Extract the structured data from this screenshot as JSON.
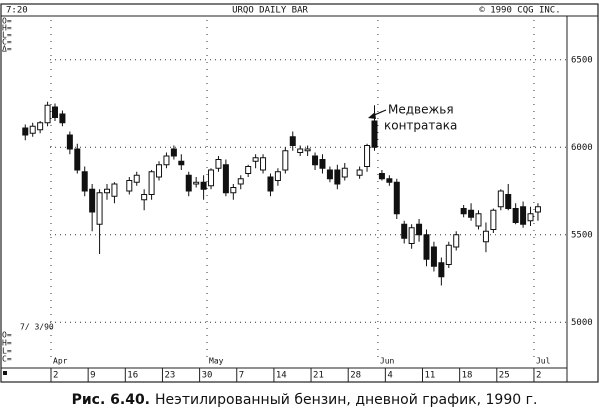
{
  "chart_data": {
    "type": "candlestick",
    "header": {
      "left": "7:20",
      "center": "URQO DAILY BAR",
      "right": "© 1990 CQG INC."
    },
    "readout_top": [
      "O=",
      "H=",
      "L=",
      "C=",
      "Δ="
    ],
    "readout_bottom": [
      "7/ 3/90",
      "O=",
      "H=",
      "L=",
      "C="
    ],
    "annotation": [
      "Медвежья",
      "контратака"
    ],
    "caption": {
      "label": "Рис. 6.40.",
      "text": "Неэтилированный бензин, дневной график, 1990 г."
    },
    "categories": [
      null,
      null,
      null,
      null,
      "2",
      null,
      null,
      null,
      null,
      "9",
      null,
      null,
      null,
      null,
      "16",
      null,
      null,
      null,
      null,
      "23",
      null,
      null,
      null,
      null,
      "30",
      null,
      null,
      null,
      null,
      "7",
      null,
      null,
      null,
      null,
      "14",
      null,
      null,
      null,
      null,
      "21",
      null,
      null,
      null,
      null,
      "28",
      null,
      null,
      null,
      null,
      "4",
      null,
      null,
      null,
      null,
      "11",
      null,
      null,
      null,
      null,
      "18",
      null,
      null,
      null,
      null,
      "25",
      null,
      null,
      null,
      null,
      "2"
    ],
    "months": [
      null,
      null,
      null,
      null,
      "Apr",
      null,
      null,
      null,
      null,
      null,
      null,
      null,
      null,
      null,
      null,
      null,
      null,
      null,
      null,
      null,
      null,
      null,
      null,
      null,
      null,
      "May",
      null,
      null,
      null,
      null,
      null,
      null,
      null,
      null,
      null,
      null,
      null,
      null,
      null,
      null,
      null,
      null,
      null,
      null,
      null,
      null,
      null,
      null,
      "Jun",
      null,
      null,
      null,
      null,
      null,
      null,
      null,
      null,
      null,
      null,
      null,
      null,
      null,
      null,
      null,
      null,
      null,
      null,
      null,
      null,
      "Jul"
    ],
    "open": [
      6110,
      6080,
      6100,
      6140,
      6230,
      6190,
      6070,
      5990,
      5860,
      5760,
      5560,
      5740,
      5720,
      null,
      5750,
      5800,
      5700,
      5730,
      5830,
      5900,
      5990,
      5920,
      5840,
      5790,
      5800,
      5780,
      5880,
      5900,
      5740,
      5790,
      5850,
      5920,
      5870,
      5830,
      5810,
      5870,
      6060,
      5970,
      5980,
      5950,
      5930,
      5870,
      5870,
      5830,
      null,
      5840,
      5890,
      6150,
      5850,
      5820,
      5800,
      5560,
      5450,
      5560,
      5500,
      5430,
      5340,
      5330,
      5430,
      5650,
      5640,
      5550,
      5460,
      5530,
      5660,
      5730,
      5650,
      5660,
      5580,
      5630
    ],
    "high": [
      6130,
      6140,
      6150,
      6260,
      6250,
      6210,
      6090,
      6020,
      5890,
      5790,
      5760,
      5790,
      5800,
      null,
      5830,
      5860,
      5760,
      5870,
      5920,
      5970,
      6010,
      5960,
      5860,
      5830,
      5840,
      5880,
      5950,
      5930,
      5790,
      5840,
      5900,
      5960,
      5960,
      5850,
      5880,
      6000,
      6090,
      6010,
      6010,
      5970,
      5960,
      5890,
      5900,
      5910,
      null,
      5890,
      6020,
      6240,
      5870,
      5840,
      5820,
      5580,
      5560,
      5590,
      5530,
      5460,
      5370,
      5460,
      5520,
      5670,
      5680,
      5640,
      5570,
      5650,
      5760,
      5790,
      5680,
      5690,
      5660,
      5680
    ],
    "low": [
      6040,
      6060,
      6080,
      6120,
      6150,
      6120,
      5960,
      5850,
      5720,
      5520,
      5390,
      5700,
      5680,
      null,
      5730,
      5780,
      5640,
      5700,
      5810,
      5880,
      5930,
      5870,
      5720,
      5770,
      5700,
      5760,
      5860,
      5720,
      5700,
      5760,
      5830,
      5880,
      5850,
      5720,
      5780,
      5850,
      5980,
      5950,
      5950,
      5870,
      5850,
      5800,
      5760,
      5810,
      null,
      5820,
      5860,
      5980,
      5810,
      5780,
      5590,
      5450,
      5420,
      5460,
      5320,
      5290,
      5210,
      5310,
      5410,
      5600,
      5580,
      5530,
      5400,
      5510,
      5640,
      5640,
      5560,
      5540,
      5550,
      5580
    ],
    "close": [
      6070,
      6120,
      6140,
      6240,
      6170,
      6140,
      5990,
      5870,
      5750,
      5630,
      5740,
      5760,
      5790,
      null,
      5810,
      5840,
      5730,
      5860,
      5900,
      5950,
      5950,
      5900,
      5750,
      5800,
      5760,
      5870,
      5930,
      5740,
      5770,
      5820,
      5890,
      5940,
      5940,
      5750,
      5860,
      5980,
      6010,
      5990,
      5990,
      5900,
      5880,
      5820,
      5790,
      5880,
      null,
      5870,
      6010,
      6000,
      5820,
      5800,
      5620,
      5480,
      5540,
      5500,
      5360,
      5320,
      5260,
      5440,
      5500,
      5620,
      5600,
      5620,
      5520,
      5640,
      5750,
      5650,
      5570,
      5560,
      5620,
      5660
    ],
    "ylim": [
      4750,
      6750
    ],
    "yticks": [
      5000,
      5500,
      6000,
      6500
    ],
    "grid": true,
    "color": "#111111"
  }
}
